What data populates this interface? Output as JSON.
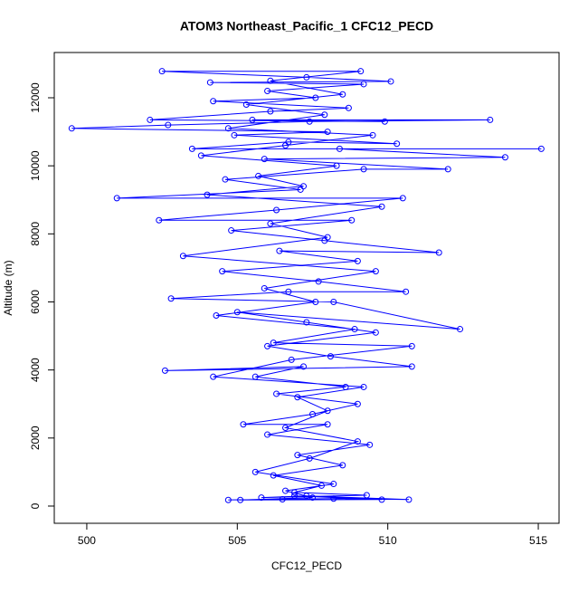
{
  "chart_data": {
    "type": "line",
    "markers": true,
    "title": "ATOM3 Northeast_Pacific_1 CFC12_PECD",
    "x_label": "CFC12_PECD",
    "y_label": "Altitude (m)",
    "color": "#0000ff",
    "x": [
      504.7,
      506.5,
      508.2,
      510.7,
      507.3,
      505.8,
      509.3,
      506.9,
      507.8,
      506.2,
      508.5,
      507.0,
      509.4,
      506.0,
      508.0,
      505.2,
      507.5,
      509.0,
      506.3,
      508.6,
      505.6,
      507.2,
      502.6,
      510.8,
      508.1,
      506.0,
      509.6,
      507.3,
      505.0,
      512.4,
      508.2,
      502.8,
      506.7,
      510.6,
      507.7,
      504.5,
      509.0,
      506.4,
      511.7,
      507.9,
      504.8,
      508.8,
      502.4,
      506.3,
      510.5,
      501.0,
      507.1,
      504.6,
      509.2,
      512.0,
      505.9,
      513.9,
      508.4,
      515.1,
      503.5,
      506.7,
      510.3,
      504.9,
      508.0,
      499.5,
      502.7,
      507.4,
      513.4,
      505.5,
      509.9,
      502.1,
      506.1,
      508.7,
      504.2,
      507.6,
      506.0,
      509.2,
      504.1,
      510.1,
      507.3,
      502.5,
      509.1,
      506.1,
      508.5,
      505.3,
      507.9,
      504.7,
      509.5,
      506.6,
      503.8,
      508.3,
      505.7,
      507.2,
      504.0,
      509.8,
      506.1,
      508.0,
      503.2,
      509.6,
      505.9,
      507.6,
      504.3,
      508.9,
      506.2,
      510.8,
      506.8,
      504.2,
      509.2,
      507.0,
      508.0,
      506.6,
      509.0,
      507.4,
      505.6,
      508.2,
      506.6,
      507.5,
      505.1,
      509.8,
      506.9
    ],
    "values": [
      180,
      200,
      220,
      190,
      300,
      250,
      320,
      400,
      600,
      900,
      1200,
      1500,
      1800,
      2100,
      2400,
      2400,
      2700,
      3000,
      3300,
      3500,
      3800,
      4100,
      3980,
      4100,
      4400,
      4700,
      5100,
      5400,
      5700,
      5200,
      6000,
      6100,
      6300,
      6300,
      6600,
      6900,
      7200,
      7500,
      7450,
      7800,
      8100,
      8400,
      8400,
      8700,
      9050,
      9050,
      9300,
      9600,
      9900,
      9900,
      10200,
      10250,
      10500,
      10500,
      10500,
      10700,
      10650,
      10900,
      11000,
      11100,
      11200,
      11300,
      11350,
      11350,
      11300,
      11350,
      11600,
      11700,
      11900,
      12000,
      12200,
      12400,
      12450,
      12480,
      12600,
      12780,
      12780,
      12500,
      12100,
      11800,
      11500,
      11100,
      10900,
      10600,
      10300,
      10000,
      9700,
      9400,
      9150,
      8800,
      8300,
      7900,
      7350,
      6900,
      6400,
      6000,
      5600,
      5200,
      4800,
      4700,
      4300,
      3800,
      3500,
      3200,
      2800,
      2300,
      1900,
      1400,
      1000,
      650,
      450,
      250,
      180,
      190,
      300
    ],
    "xlim": [
      498.92,
      515.69
    ],
    "ylim": [
      -506,
      13330
    ],
    "xticks": [
      500,
      505,
      510,
      515
    ],
    "yticks": [
      0,
      2000,
      4000,
      6000,
      8000,
      10000,
      12000
    ]
  }
}
